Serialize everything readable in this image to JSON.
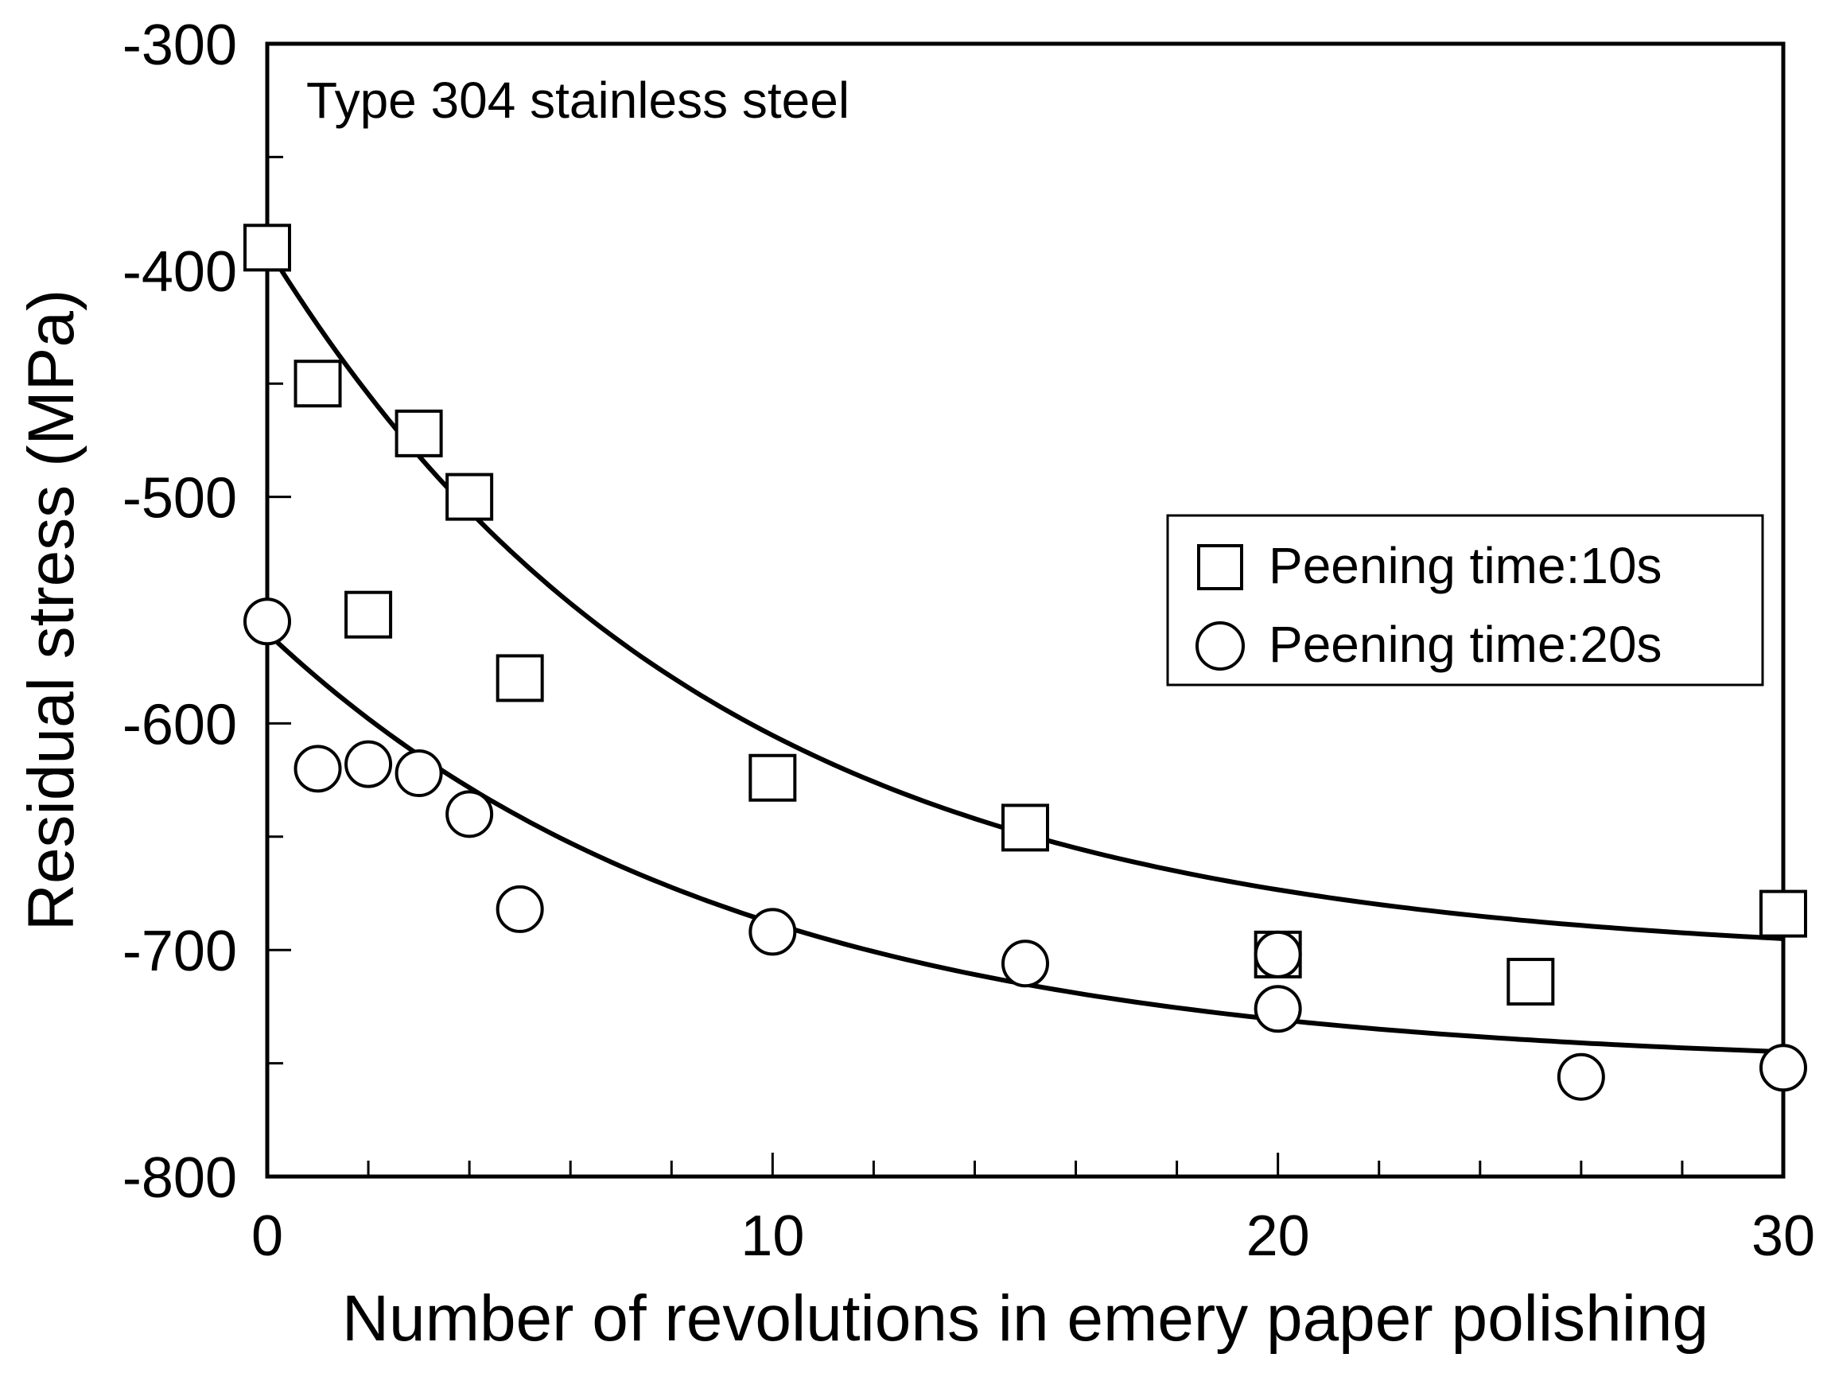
{
  "chart_data": {
    "type": "scatter",
    "title": "",
    "annotation": "Type 304 stainless steel",
    "xlabel": "Number of revolutions in emery paper polishing",
    "ylabel": "Residual stress (MPa)",
    "xlim": [
      0,
      30
    ],
    "ylim": [
      -800,
      -300
    ],
    "xticks": [
      0,
      10,
      20,
      30
    ],
    "yticks": [
      -300,
      -400,
      -500,
      -600,
      -700,
      -800
    ],
    "x_minor_step": 2,
    "y_minor_step": 50,
    "grid": false,
    "legend_position": "center-right",
    "series": [
      {
        "name": "Peening time:10s",
        "marker": "square",
        "x": [
          0,
          1,
          2,
          3,
          4,
          5,
          10,
          15,
          20,
          25,
          30
        ],
        "y": [
          -390,
          -450,
          -552,
          -472,
          -500,
          -580,
          -624,
          -646,
          -702,
          -714,
          -684
        ],
        "fit": {
          "a": -705,
          "b": 315,
          "k": 0.115
        }
      },
      {
        "name": "Peening time:20s",
        "marker": "circle",
        "x": [
          0,
          1,
          2,
          3,
          4,
          5,
          10,
          15,
          20,
          20,
          26,
          30
        ],
        "y": [
          -555,
          -620,
          -618,
          -622,
          -640,
          -682,
          -692,
          -706,
          -726,
          -702,
          -756,
          -752
        ],
        "fit": {
          "a": -752,
          "b": 192,
          "k": 0.11
        }
      }
    ]
  }
}
